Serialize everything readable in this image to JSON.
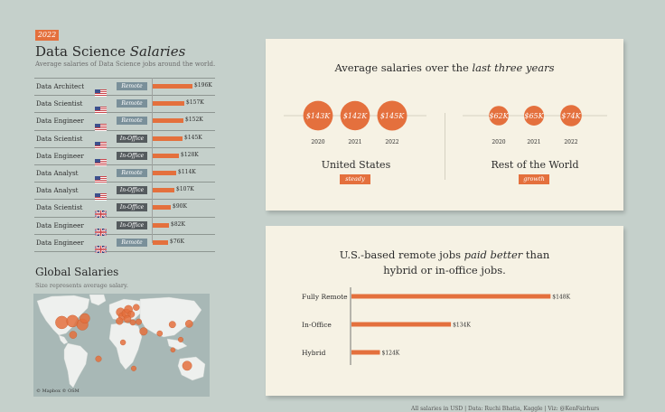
{
  "header": {
    "year": "2022",
    "title_main": "Data Science ",
    "title_em": "Salaries",
    "subtitle": "Average salaries of Data Science jobs around the world."
  },
  "colors": {
    "accent": "#e4703d",
    "remote": "#7a909a",
    "in_office": "#555b5e",
    "card": "#f6f2e4",
    "background": "#c5d0cb"
  },
  "table": {
    "rows": [
      {
        "title": "Data Architect",
        "flag": "us-flag",
        "type": "Remote",
        "value": 196,
        "label": "$196K"
      },
      {
        "title": "Data Scientist",
        "flag": "us-flag",
        "type": "Remote",
        "value": 157,
        "label": "$157K"
      },
      {
        "title": "Data Engineer",
        "flag": "us-flag",
        "type": "Remote",
        "value": 152,
        "label": "$152K"
      },
      {
        "title": "Data Scientist",
        "flag": "us-flag",
        "type": "In-Office",
        "value": 145,
        "label": "$145K"
      },
      {
        "title": "Data Engineer",
        "flag": "us-flag",
        "type": "In-Office",
        "value": 128,
        "label": "$128K"
      },
      {
        "title": "Data Analyst",
        "flag": "us-flag",
        "type": "Remote",
        "value": 114,
        "label": "$114K"
      },
      {
        "title": "Data Analyst",
        "flag": "us-flag",
        "type": "In-Office",
        "value": 107,
        "label": "$107K"
      },
      {
        "title": "Data Scientist",
        "flag": "uk-flag",
        "type": "In-Office",
        "value": 90,
        "label": "$90K"
      },
      {
        "title": "Data Engineer",
        "flag": "uk-flag",
        "type": "In-Office",
        "value": 82,
        "label": "$82K"
      },
      {
        "title": "Data Engineer",
        "flag": "uk-flag",
        "type": "Remote",
        "value": 76,
        "label": "$76K"
      }
    ]
  },
  "global": {
    "title": "Global Salaries",
    "subtitle": "Size represents average salary.",
    "credit": "© Mapbox © OSM"
  },
  "card1": {
    "title_main": "Average salaries over the ",
    "title_em": "last three years",
    "us_label": "United States",
    "us_badge": "steady",
    "row_label": "Rest of the World",
    "row_badge": "growth"
  },
  "card2": {
    "title_line1_a": "U.S.-based remote jobs ",
    "title_line1_em": "paid better",
    "title_line1_b": " than",
    "title_line2": "hybrid or in-office jobs."
  },
  "footer": {
    "credits": "All salaries in USD  |  Data: Ruchi Bhatia, Kaggle  |  Viz: @KenFairhurs"
  },
  "chart_data": [
    {
      "type": "bar",
      "title": "Data Science Salaries",
      "categories": [
        "Data Architect",
        "Data Scientist",
        "Data Engineer",
        "Data Scientist",
        "Data Engineer",
        "Data Analyst",
        "Data Analyst",
        "Data Scientist",
        "Data Engineer",
        "Data Engineer"
      ],
      "values": [
        196,
        157,
        152,
        145,
        128,
        114,
        107,
        90,
        82,
        76
      ],
      "value_labels": [
        "$196K",
        "$157K",
        "$152K",
        "$145K",
        "$128K",
        "$114K",
        "$107K",
        "$90K",
        "$82K",
        "$76K"
      ],
      "work_type": [
        "Remote",
        "Remote",
        "Remote",
        "In-Office",
        "In-Office",
        "Remote",
        "In-Office",
        "In-Office",
        "In-Office",
        "Remote"
      ]
    },
    {
      "type": "scatter",
      "title": "Average salaries over the last three years",
      "groups": [
        {
          "name": "United States",
          "x": [
            "2020",
            "2021",
            "2022"
          ],
          "values": [
            143,
            142,
            145
          ],
          "labels": [
            "$143K",
            "$142K",
            "$145K"
          ]
        },
        {
          "name": "Rest of the World",
          "x": [
            "2020",
            "2021",
            "2022"
          ],
          "values": [
            62,
            65,
            74
          ],
          "labels": [
            "$62K",
            "$65K",
            "$74K"
          ]
        }
      ]
    },
    {
      "type": "bar",
      "title": "U.S.-based remote jobs paid better than hybrid or in-office jobs.",
      "categories": [
        "Fully Remote",
        "In-Office",
        "Hybrid"
      ],
      "values": [
        148,
        134,
        124
      ],
      "value_labels": [
        "$148K",
        "$134K",
        "$124K"
      ],
      "xlim": [
        120,
        150
      ]
    },
    {
      "type": "scatter",
      "title": "Global Salaries",
      "points": [
        {
          "lon": -122,
          "lat": 38,
          "value": 150
        },
        {
          "lon": -100,
          "lat": 40,
          "value": 140
        },
        {
          "lon": -80,
          "lat": 35,
          "value": 130
        },
        {
          "lon": -75,
          "lat": 44,
          "value": 110
        },
        {
          "lon": -99,
          "lat": 20,
          "value": 70
        },
        {
          "lon": -47,
          "lat": -15,
          "value": 50
        },
        {
          "lon": -2,
          "lat": 53,
          "value": 90
        },
        {
          "lon": 2,
          "lat": 47,
          "value": 80
        },
        {
          "lon": 10,
          "lat": 51,
          "value": 95
        },
        {
          "lon": 14,
          "lat": 57,
          "value": 85
        },
        {
          "lon": 20,
          "lat": 50,
          "value": 60
        },
        {
          "lon": 12,
          "lat": 43,
          "value": 70
        },
        {
          "lon": -4,
          "lat": 40,
          "value": 65
        },
        {
          "lon": 30,
          "lat": 60,
          "value": 55
        },
        {
          "lon": 35,
          "lat": 39,
          "value": 50
        },
        {
          "lon": 23,
          "lat": 38,
          "value": 45
        },
        {
          "lon": 3,
          "lat": 9,
          "value": 40
        },
        {
          "lon": 25,
          "lat": -29,
          "value": 35
        },
        {
          "lon": 45,
          "lat": 25,
          "value": 75
        },
        {
          "lon": 78,
          "lat": 22,
          "value": 45
        },
        {
          "lon": 104,
          "lat": 35,
          "value": 60
        },
        {
          "lon": 138,
          "lat": 36,
          "value": 70
        },
        {
          "lon": 121,
          "lat": 13,
          "value": 35
        },
        {
          "lon": 105,
          "lat": -2,
          "value": 30
        },
        {
          "lon": 134,
          "lat": -25,
          "value": 100
        }
      ]
    }
  ]
}
